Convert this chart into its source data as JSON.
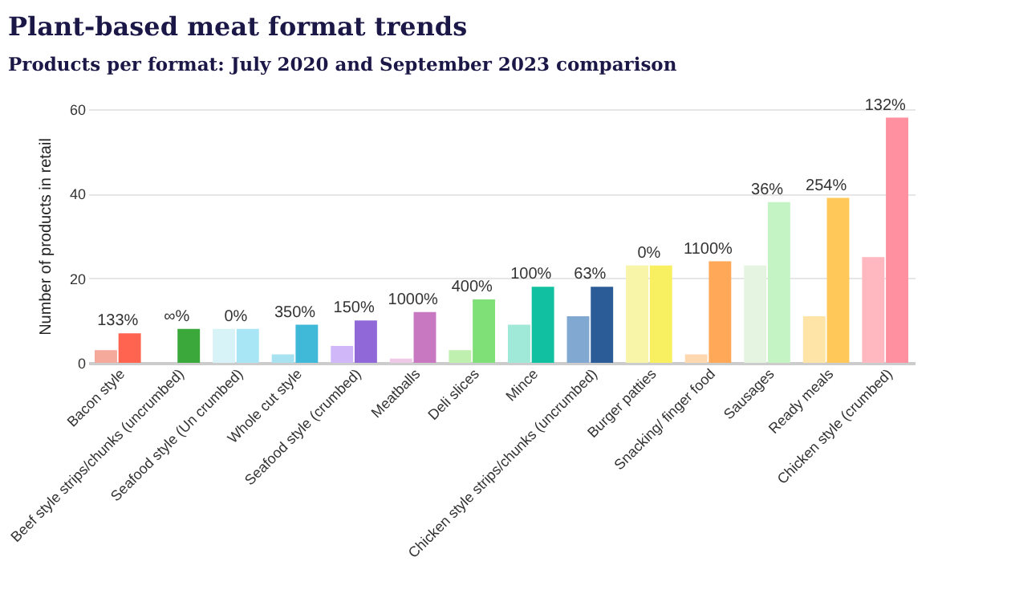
{
  "chart_data": {
    "type": "bar",
    "title": "Plant-based meat format trends",
    "subtitle": "Products per format: July 2020 and September 2023 comparison",
    "ylabel": "Number of products in retail",
    "categories": [
      "Bacon style",
      "Beef style strips/chunks (uncrumbed)",
      "Seafood style (Un crumbed)",
      "Whole cut style",
      "Seafood style (crumbed)",
      "Meatballs",
      "Deli slices",
      "Mince",
      "Chicken style strips/chunks (uncrumbed)",
      "Burger patties",
      "Snacking/ finger food",
      "Sausages",
      "Ready meals",
      "Chicken style (crumbed)"
    ],
    "series": [
      {
        "colors": [
          "#f4a99a",
          "#a8dca8",
          "#d8f3f8",
          "#a8e2f0",
          "#d0b8f8",
          "#f0c8e8",
          "#c0f0b0",
          "#a0e8d8",
          "#80a8d0",
          "#f8f4a8",
          "#ffd8b0",
          "#e4f4e0",
          "#ffe4a8",
          "#ffb8c0"
        ],
        "values": [
          3,
          0,
          8,
          2,
          4,
          1,
          3,
          9,
          11,
          23,
          2,
          23,
          11,
          25
        ]
      },
      {
        "colors": [
          "#fe6450",
          "#3aa83a",
          "#a8e6f6",
          "#40b8d8",
          "#9068d8",
          "#c878c0",
          "#80e078",
          "#10c0a0",
          "#2c5c98",
          "#f8f060",
          "#ffa858",
          "#c4f4c4",
          "#ffc858",
          "#ff90a0"
        ],
        "values": [
          7,
          8,
          8,
          9,
          10,
          12,
          15,
          18,
          18,
          23,
          24,
          38,
          39,
          58
        ]
      }
    ],
    "annotations": [
      {
        "text": "133%",
        "x": "Bacon style",
        "y": 7
      },
      {
        "text": "∞%",
        "x": "Beef style strips/chunks (uncrumbed)",
        "y": 8
      },
      {
        "text": "0%",
        "x": "Seafood style (Un crumbed)",
        "y": 8
      },
      {
        "text": "350%",
        "x": "Whole cut style",
        "y": 9
      },
      {
        "text": "150%",
        "x": "Seafood style (crumbed)",
        "y": 10
      },
      {
        "text": "1000%",
        "x": "Meatballs",
        "y": 12
      },
      {
        "text": "400%",
        "x": "Deli slices",
        "y": 15
      },
      {
        "text": "100%",
        "x": "Mince",
        "y": 18
      },
      {
        "text": "63%",
        "x": "Chicken style strips/chunks (uncrumbed)",
        "y": 18
      },
      {
        "text": "0%",
        "x": "Burger patties",
        "y": 23
      },
      {
        "text": "1100%",
        "x": "Snacking/ finger food",
        "y": 24
      },
      {
        "text": "36%",
        "x": "Sausages",
        "y": 38
      },
      {
        "text": "254%",
        "x": "Ready meals",
        "y": 39
      },
      {
        "text": "132%",
        "x": "Chicken style (crumbed)",
        "y": 58
      }
    ],
    "ylim": [
      0,
      60
    ],
    "yticks": [
      0,
      20,
      40,
      60
    ],
    "grid": "y"
  }
}
